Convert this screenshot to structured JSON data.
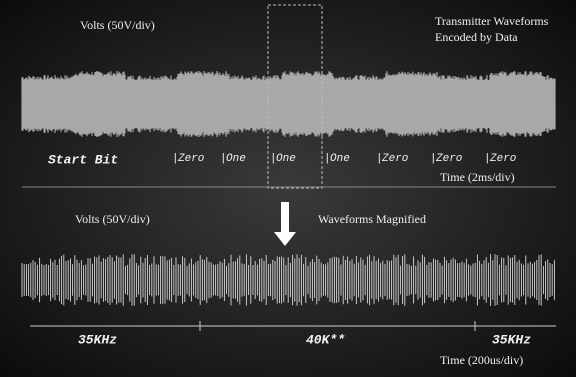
{
  "top": {
    "y_label": "Volts (50V/div)",
    "title_lines": [
      "Transmitter Waveforms",
      "Encoded by Data"
    ],
    "x_label": "Time (2ms/div)"
  },
  "bits": {
    "start": "Start Bit",
    "labels": [
      "Zero",
      "One",
      "One",
      "One",
      "Zero",
      "Zero",
      "Zero"
    ]
  },
  "bottom": {
    "y_label": "Volts (50V/div)",
    "title": "Waveforms Magnified",
    "x_label": "Time (200us/div)"
  },
  "frequencies": [
    "35KHz",
    "40K**",
    "35KHz"
  ]
}
